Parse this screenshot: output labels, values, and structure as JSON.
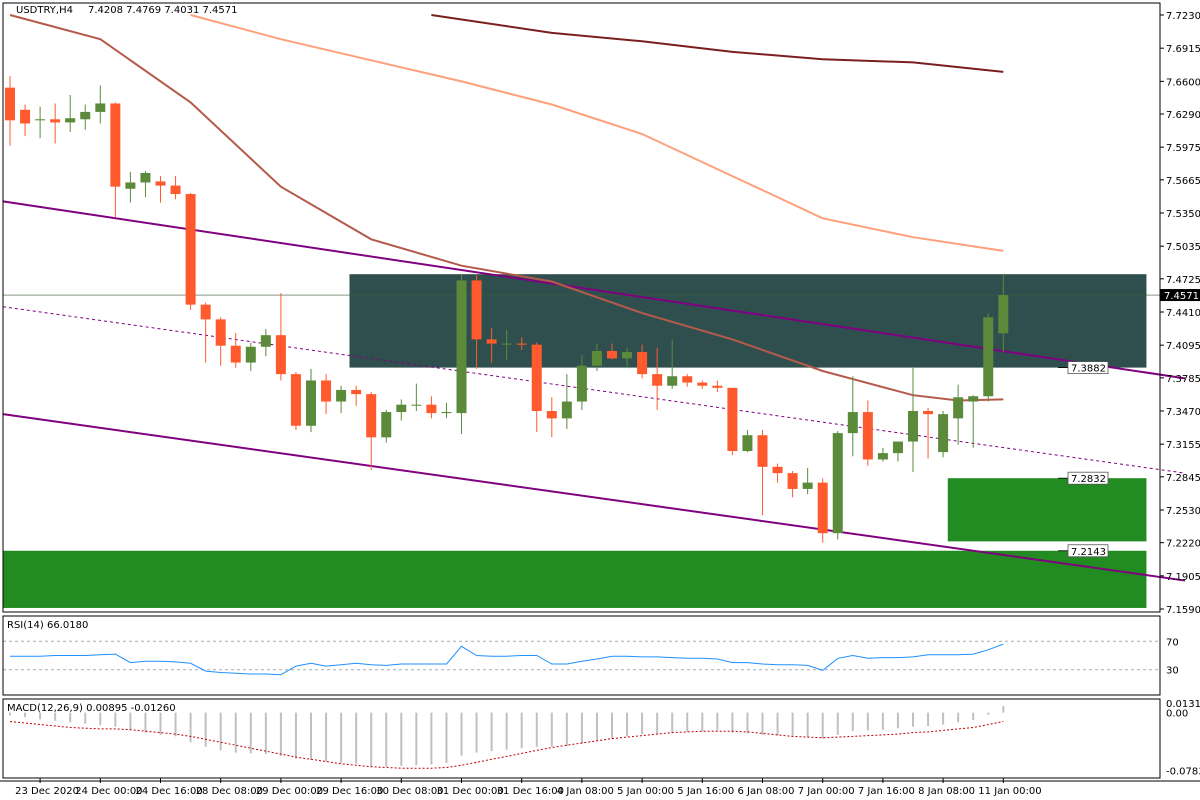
{
  "chart_data": [
    {
      "type": "candlestick",
      "header": {
        "symbol": "USDTRY,H4",
        "open": "7.4208",
        "high": "7.4769",
        "low": "7.4031",
        "close": "7.4571"
      },
      "ylim": [
        7.159,
        7.723
      ],
      "y_ticks": [
        "7.7230",
        "7.6915",
        "7.6600",
        "7.6290",
        "7.5975",
        "7.5665",
        "7.5350",
        "7.5035",
        "7.4725",
        "7.4410",
        "7.4095",
        "7.3785",
        "7.3470",
        "7.3155",
        "7.2845",
        "7.2530",
        "7.2220",
        "7.1905",
        "7.1590"
      ],
      "price_line": {
        "value": 7.4571,
        "label": "7.4571",
        "color": "#000000"
      },
      "level_labels": [
        {
          "value": 7.3882,
          "label": "7.3882"
        },
        {
          "value": 7.2832,
          "label": "7.2832"
        },
        {
          "value": 7.2143,
          "label": "7.2143"
        }
      ],
      "zones": [
        {
          "name": "resistance-zone",
          "from_bar": 0.3,
          "to_bar": 0.99,
          "y_from": 7.3882,
          "y_to": 7.4769,
          "color": "#2f4f4f"
        },
        {
          "name": "support-zone-1",
          "from_bar": 0.818,
          "to_bar": 0.99,
          "y_from": 7.2232,
          "y_to": 7.2832,
          "color": "#228b22"
        },
        {
          "name": "support-zone-2",
          "from_bar": 0.0,
          "to_bar": 0.99,
          "y_from": 7.16,
          "y_to": 7.2143,
          "color": "#228b22"
        }
      ],
      "colors": {
        "up": "#5a8a3a",
        "down": "#ff5a2e",
        "ma1": "#b55a4a",
        "ma2": "#ffa07a",
        "ma3": "#7b1e1e",
        "channel": "#800080",
        "rsi": "#1e90ff",
        "macd_hist": "#c0c0c0",
        "macd_signal": "#c00000"
      },
      "candles": [
        [
          7.654,
          7.665,
          7.599,
          7.623
        ],
        [
          7.633,
          7.638,
          7.608,
          7.62
        ],
        [
          7.623,
          7.636,
          7.606,
          7.624
        ],
        [
          7.624,
          7.639,
          7.601,
          7.621
        ],
        [
          7.621,
          7.647,
          7.612,
          7.625
        ],
        [
          7.624,
          7.638,
          7.614,
          7.631
        ],
        [
          7.631,
          7.656,
          7.62,
          7.639
        ],
        [
          7.639,
          7.64,
          7.531,
          7.56
        ],
        [
          7.558,
          7.574,
          7.545,
          7.564
        ],
        [
          7.564,
          7.575,
          7.55,
          7.573
        ],
        [
          7.565,
          7.57,
          7.545,
          7.561
        ],
        [
          7.561,
          7.57,
          7.548,
          7.553
        ],
        [
          7.553,
          7.554,
          7.443,
          7.448
        ],
        [
          7.448,
          7.45,
          7.393,
          7.434
        ],
        [
          7.434,
          7.436,
          7.39,
          7.409
        ],
        [
          7.409,
          7.421,
          7.388,
          7.393
        ],
        [
          7.393,
          7.412,
          7.385,
          7.408
        ],
        [
          7.408,
          7.425,
          7.399,
          7.419
        ],
        [
          7.419,
          7.459,
          7.376,
          7.382
        ],
        [
          7.382,
          7.384,
          7.329,
          7.333
        ],
        [
          7.333,
          7.387,
          7.327,
          7.376
        ],
        [
          7.376,
          7.382,
          7.344,
          7.356
        ],
        [
          7.356,
          7.371,
          7.345,
          7.367
        ],
        [
          7.367,
          7.371,
          7.352,
          7.363
        ],
        [
          7.363,
          7.365,
          7.291,
          7.322
        ],
        [
          7.322,
          7.348,
          7.317,
          7.346
        ],
        [
          7.346,
          7.358,
          7.338,
          7.353
        ],
        [
          7.353,
          7.373,
          7.347,
          7.353
        ],
        [
          7.353,
          7.361,
          7.34,
          7.345
        ],
        [
          7.345,
          7.355,
          7.34,
          7.346
        ],
        [
          7.345,
          7.4769,
          7.325,
          7.471
        ],
        [
          7.471,
          7.476,
          7.387,
          7.415
        ],
        [
          7.415,
          7.426,
          7.393,
          7.411
        ],
        [
          7.411,
          7.424,
          7.395,
          7.411
        ],
        [
          7.411,
          7.417,
          7.405,
          7.41
        ],
        [
          7.41,
          7.412,
          7.327,
          7.347
        ],
        [
          7.347,
          7.36,
          7.322,
          7.34
        ],
        [
          7.34,
          7.382,
          7.33,
          7.356
        ],
        [
          7.356,
          7.4,
          7.348,
          7.39
        ],
        [
          7.39,
          7.411,
          7.385,
          7.404
        ],
        [
          7.404,
          7.411,
          7.396,
          7.397
        ],
        [
          7.397,
          7.407,
          7.389,
          7.403
        ],
        [
          7.403,
          7.41,
          7.378,
          7.382
        ],
        [
          7.382,
          7.407,
          7.348,
          7.371
        ],
        [
          7.371,
          7.415,
          7.368,
          7.38
        ],
        [
          7.38,
          7.382,
          7.37,
          7.374
        ],
        [
          7.374,
          7.376,
          7.368,
          7.371
        ],
        [
          7.371,
          7.376,
          7.365,
          7.369
        ],
        [
          7.369,
          7.369,
          7.305,
          7.309
        ],
        [
          7.309,
          7.329,
          7.308,
          7.324
        ],
        [
          7.324,
          7.329,
          7.248,
          7.294
        ],
        [
          7.294,
          7.297,
          7.279,
          7.288
        ],
        [
          7.288,
          7.29,
          7.265,
          7.273
        ],
        [
          7.273,
          7.293,
          7.268,
          7.279
        ],
        [
          7.279,
          7.283,
          7.222,
          7.231
        ],
        [
          7.231,
          7.328,
          7.225,
          7.326
        ],
        [
          7.326,
          7.38,
          7.304,
          7.346
        ],
        [
          7.346,
          7.357,
          7.295,
          7.301
        ],
        [
          7.301,
          7.312,
          7.299,
          7.307
        ],
        [
          7.307,
          7.318,
          7.299,
          7.318
        ],
        [
          7.318,
          7.388,
          7.289,
          7.347
        ],
        [
          7.347,
          7.35,
          7.302,
          7.344
        ],
        [
          7.308,
          7.347,
          7.303,
          7.344
        ],
        [
          7.34,
          7.372,
          7.315,
          7.36
        ],
        [
          7.356,
          7.362,
          7.312,
          7.361
        ],
        [
          7.361,
          7.44,
          7.356,
          7.436
        ],
        [
          7.4208,
          7.4769,
          7.4031,
          7.4571
        ]
      ],
      "indicators": {
        "rsi": {
          "label": "RSI(14) 66.0180",
          "ylim": [
            0,
            100
          ],
          "ticks": [
            "70",
            "30"
          ],
          "levels": [
            70,
            30
          ],
          "values": [
            49,
            49,
            49,
            50,
            50,
            50,
            51,
            52,
            40,
            42,
            42,
            41,
            39,
            28,
            26,
            25,
            24,
            24,
            23,
            35,
            39,
            35,
            37,
            39,
            37,
            36,
            38,
            38,
            38,
            38,
            63,
            50,
            49,
            49,
            50,
            50,
            38,
            38,
            42,
            45,
            49,
            49,
            48,
            48,
            47,
            46,
            46,
            45,
            40,
            40,
            38,
            37,
            37,
            36,
            29,
            46,
            50,
            46,
            47,
            47,
            48,
            51,
            51,
            51,
            52,
            58,
            66
          ]
        },
        "macd": {
          "label": "MACD(12,26,9) 0.00895 -0.01260",
          "ylim": [
            -0.0828,
            0.013
          ],
          "ticks": [
            "0.01311",
            "0.00",
            "-0.07834"
          ],
          "hist": [
            -0.004,
            -0.006,
            -0.009,
            -0.011,
            -0.013,
            -0.015,
            -0.017,
            -0.019,
            -0.023,
            -0.027,
            -0.03,
            -0.032,
            -0.04,
            -0.046,
            -0.051,
            -0.054,
            -0.055,
            -0.056,
            -0.058,
            -0.062,
            -0.064,
            -0.066,
            -0.068,
            -0.069,
            -0.073,
            -0.073,
            -0.072,
            -0.071,
            -0.07,
            -0.068,
            -0.058,
            -0.054,
            -0.052,
            -0.05,
            -0.048,
            -0.046,
            -0.046,
            -0.045,
            -0.042,
            -0.038,
            -0.035,
            -0.032,
            -0.029,
            -0.029,
            -0.027,
            -0.026,
            -0.025,
            -0.024,
            -0.027,
            -0.028,
            -0.03,
            -0.031,
            -0.032,
            -0.033,
            -0.035,
            -0.03,
            -0.025,
            -0.024,
            -0.023,
            -0.021,
            -0.019,
            -0.018,
            -0.016,
            -0.013,
            -0.01,
            -0.003,
            0.009
          ],
          "signal": [
            -0.012,
            -0.014,
            -0.016,
            -0.018,
            -0.02,
            -0.021,
            -0.022,
            -0.022,
            -0.023,
            -0.025,
            -0.027,
            -0.029,
            -0.032,
            -0.036,
            -0.04,
            -0.044,
            -0.048,
            -0.052,
            -0.056,
            -0.06,
            -0.063,
            -0.066,
            -0.069,
            -0.071,
            -0.073,
            -0.074,
            -0.075,
            -0.075,
            -0.075,
            -0.074,
            -0.071,
            -0.067,
            -0.063,
            -0.059,
            -0.055,
            -0.051,
            -0.047,
            -0.044,
            -0.041,
            -0.038,
            -0.035,
            -0.033,
            -0.031,
            -0.029,
            -0.027,
            -0.026,
            -0.025,
            -0.025,
            -0.025,
            -0.026,
            -0.028,
            -0.03,
            -0.032,
            -0.033,
            -0.034,
            -0.033,
            -0.032,
            -0.031,
            -0.03,
            -0.029,
            -0.027,
            -0.026,
            -0.024,
            -0.022,
            -0.02,
            -0.016,
            -0.012
          ]
        }
      },
      "moving_averages": {
        "ma1": [
          [
            0,
            7.723
          ],
          [
            6,
            7.7
          ],
          [
            12,
            7.64
          ],
          [
            18,
            7.56
          ],
          [
            24,
            7.51
          ],
          [
            30,
            7.485
          ],
          [
            36,
            7.47
          ],
          [
            42,
            7.44
          ],
          [
            48,
            7.415
          ],
          [
            54,
            7.385
          ],
          [
            60,
            7.362
          ],
          [
            63,
            7.357
          ],
          [
            66,
            7.358
          ]
        ],
        "ma2": [
          [
            12,
            7.723
          ],
          [
            18,
            7.7
          ],
          [
            24,
            7.68
          ],
          [
            30,
            7.66
          ],
          [
            36,
            7.638
          ],
          [
            42,
            7.61
          ],
          [
            48,
            7.57
          ],
          [
            54,
            7.53
          ],
          [
            60,
            7.512
          ],
          [
            66,
            7.499
          ]
        ],
        "ma3": [
          [
            28,
            7.723
          ],
          [
            36,
            7.706
          ],
          [
            42,
            7.698
          ],
          [
            48,
            7.688
          ],
          [
            54,
            7.681
          ],
          [
            60,
            7.678
          ],
          [
            66,
            7.669
          ]
        ]
      },
      "channel": {
        "upper": [
          [
            0,
            7.546
          ],
          [
            67,
            7.378
          ]
        ],
        "mid": [
          [
            0,
            7.446
          ],
          [
            67,
            7.288
          ]
        ],
        "lower": [
          [
            0,
            7.344
          ],
          [
            67,
            7.186
          ]
        ]
      },
      "x_labels": [
        {
          "bar": 2,
          "label": "23 Dec 2020"
        },
        {
          "bar": 6,
          "label": "24 Dec 00:00"
        },
        {
          "bar": 10,
          "label": "24 Dec 16:00"
        },
        {
          "bar": 14,
          "label": "28 Dec 08:00"
        },
        {
          "bar": 18,
          "label": "29 Dec 00:00"
        },
        {
          "bar": 22,
          "label": "29 Dec 16:00"
        },
        {
          "bar": 26,
          "label": "30 Dec 08:00"
        },
        {
          "bar": 30,
          "label": "31 Dec 00:00"
        },
        {
          "bar": 34,
          "label": "31 Dec 16:00"
        },
        {
          "bar": 38,
          "label": "4 Jan 08:00"
        },
        {
          "bar": 42,
          "label": "5 Jan 00:00"
        },
        {
          "bar": 46,
          "label": "5 Jan 16:00"
        },
        {
          "bar": 50,
          "label": "6 Jan 08:00"
        },
        {
          "bar": 54,
          "label": "7 Jan 00:00"
        },
        {
          "bar": 58,
          "label": "7 Jan 16:00"
        },
        {
          "bar": 62,
          "label": "8 Jan 08:00"
        },
        {
          "bar": 66,
          "label": "11 Jan 00:00"
        }
      ]
    }
  ]
}
